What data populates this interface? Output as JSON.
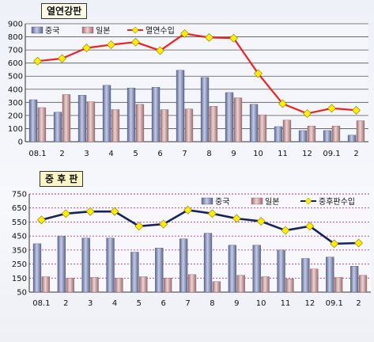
{
  "chart_data": [
    {
      "type": "bar",
      "title": "열연강판",
      "categories": [
        "08.1",
        "2",
        "3",
        "4",
        "5",
        "6",
        "7",
        "8",
        "9",
        "10",
        "11",
        "12",
        "09.1",
        "2"
      ],
      "ylim": [
        0,
        900
      ],
      "yticks": [
        0,
        100,
        200,
        300,
        400,
        500,
        600,
        700,
        800,
        900
      ],
      "grid": true,
      "legend": "top",
      "series": [
        {
          "name": "중국",
          "kind": "bar",
          "color": "#8a94b8",
          "values": [
            320,
            225,
            355,
            430,
            410,
            415,
            545,
            490,
            375,
            285,
            115,
            85,
            85,
            50
          ]
        },
        {
          "name": "일본",
          "kind": "bar",
          "color": "#c9a4a4",
          "values": [
            260,
            360,
            305,
            245,
            285,
            245,
            250,
            270,
            335,
            205,
            165,
            120,
            120,
            160
          ]
        },
        {
          "name": "열연수입",
          "kind": "line",
          "color": "#ee2222",
          "marker_color": "#ffee00",
          "values": [
            615,
            635,
            715,
            740,
            760,
            695,
            825,
            795,
            790,
            520,
            290,
            215,
            255,
            240
          ]
        }
      ]
    },
    {
      "type": "bar",
      "title": "중 후 판",
      "categories": [
        "08.1",
        "2",
        "3",
        "4",
        "5",
        "6",
        "7",
        "8",
        "9",
        "10",
        "11",
        "12",
        "09.1",
        "2"
      ],
      "ylim": [
        50,
        750
      ],
      "yticks": [
        50,
        150,
        250,
        350,
        450,
        550,
        650,
        750
      ],
      "grid": true,
      "legend": "top",
      "series": [
        {
          "name": "중국",
          "kind": "bar",
          "color": "#8a94b8",
          "values": [
            395,
            450,
            435,
            435,
            335,
            365,
            430,
            470,
            385,
            385,
            350,
            290,
            300,
            235
          ]
        },
        {
          "name": "일본",
          "kind": "bar",
          "color": "#c9a4a4",
          "values": [
            160,
            150,
            155,
            150,
            160,
            150,
            175,
            125,
            170,
            160,
            145,
            215,
            155,
            170
          ]
        },
        {
          "name": "중후판수입",
          "kind": "line",
          "color": "#14225e",
          "marker_color": "#ffee00",
          "values": [
            565,
            610,
            625,
            625,
            520,
            535,
            635,
            610,
            575,
            555,
            490,
            520,
            395,
            400
          ]
        }
      ]
    }
  ]
}
